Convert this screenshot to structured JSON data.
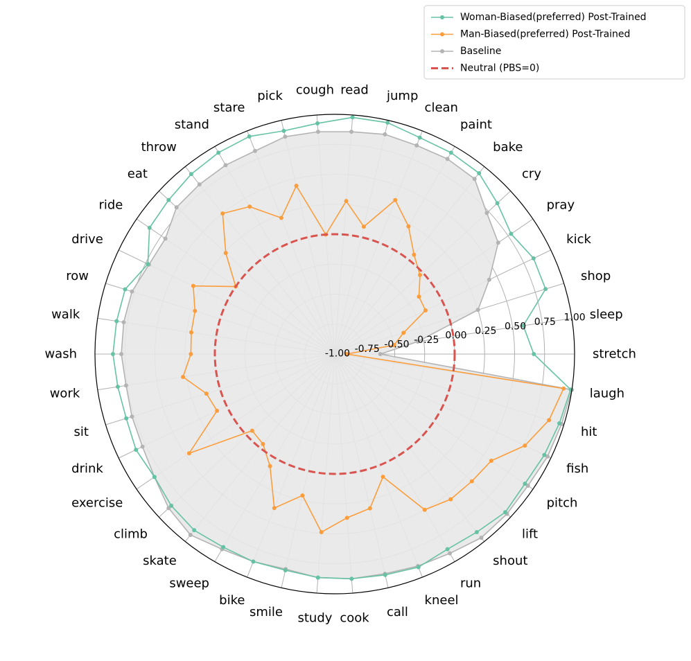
{
  "chart_data": {
    "type": "radar",
    "title": "",
    "r_range": [
      -1.0,
      1.0
    ],
    "r_ticks": [
      -1.0,
      -0.75,
      -0.5,
      -0.25,
      0.0,
      0.25,
      0.5,
      0.75,
      1.0
    ],
    "r_tick_labels": [
      "-1.00",
      "-0.75",
      "-0.50",
      "-0.25",
      "0.00",
      "0.25",
      "0.50",
      "0.75",
      "1.00"
    ],
    "grid": true,
    "legend_position": "top-right",
    "categories": [
      "stretch",
      "sleep",
      "shop",
      "kick",
      "pray",
      "cry",
      "bake",
      "paint",
      "clean",
      "jump",
      "read",
      "cough",
      "pick",
      "stare",
      "stand",
      "throw",
      "eat",
      "ride",
      "drive",
      "row",
      "walk",
      "wash",
      "work",
      "sit",
      "drink",
      "exercise",
      "climb",
      "skate",
      "sweep",
      "bike",
      "smile",
      "study",
      "cook",
      "call",
      "kneel",
      "run",
      "shout",
      "lift",
      "pitch",
      "fish",
      "hit",
      "laugh"
    ],
    "series": [
      {
        "name": "Woman-Biased(preferred) Post-Trained",
        "color": "#66c2a5",
        "values": [
          0.66,
          0.59,
          0.84,
          0.84,
          0.78,
          0.85,
          0.93,
          0.94,
          0.94,
          0.98,
          0.98,
          0.93,
          0.91,
          0.95,
          0.94,
          0.92,
          0.89,
          0.87,
          0.73,
          0.83,
          0.84,
          0.85,
          0.83,
          0.82,
          0.84,
          0.82,
          0.86,
          0.88,
          0.86,
          0.86,
          0.85,
          0.87,
          0.88,
          0.89,
          0.91,
          0.88,
          0.9,
          0.94,
          0.92,
          0.94,
          0.96,
          0.99
        ]
      },
      {
        "name": "Man-Biased(preferred) Post-Trained",
        "color": "#fc9d3b",
        "values": [
          -0.9,
          -0.5,
          -0.4,
          -0.16,
          -0.15,
          -0.03,
          0.06,
          0.23,
          0.38,
          0.09,
          0.28,
          0.0,
          0.44,
          0.22,
          0.42,
          0.5,
          0.24,
          0.0,
          0.31,
          0.22,
          0.21,
          0.2,
          0.28,
          0.12,
          0.09,
          0.47,
          -0.06,
          -0.04,
          0.08,
          0.38,
          0.21,
          0.49,
          0.37,
          0.32,
          0.1,
          0.5,
          0.55,
          0.56,
          0.58,
          0.76,
          0.87,
          0.93
        ]
      },
      {
        "name": "Baseline",
        "color": "#b3b3b3",
        "values": [
          -0.62,
          -0.3,
          0.25,
          0.43,
          0.65,
          0.73,
          0.87,
          0.88,
          0.87,
          0.88,
          0.86,
          0.86,
          0.86,
          0.82,
          0.82,
          0.81,
          0.8,
          0.71,
          0.72,
          0.77,
          0.78,
          0.78,
          0.76,
          0.77,
          0.78,
          0.82,
          0.89,
          0.93,
          0.88,
          0.86,
          0.84,
          0.87,
          0.88,
          0.88,
          0.9,
          0.92,
          0.96,
          0.96,
          0.95,
          0.97,
          0.98,
          1.0
        ]
      },
      {
        "name": "Neutral (PBS=0)",
        "color": "#d9534f",
        "style": "dashed",
        "value": 0.0
      }
    ]
  }
}
